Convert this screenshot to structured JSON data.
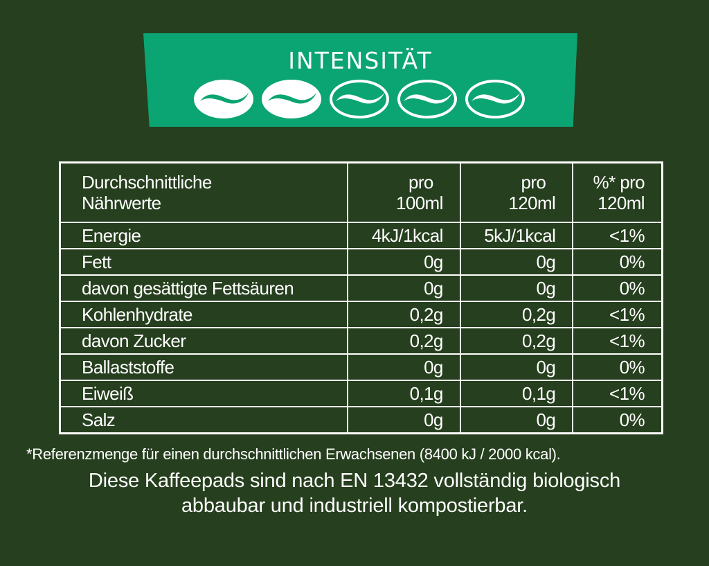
{
  "intensity": {
    "title": "INTENSITÄT",
    "level": 2,
    "max": 5,
    "icon": "coffee-bean-icon",
    "color": "#0aa572"
  },
  "table": {
    "header": {
      "label_line1": "Durchschnittliche",
      "label_line2": "Nährwerte",
      "col1_line1": "pro",
      "col1_line2": "100ml",
      "col2_line1": "pro",
      "col2_line2": "120ml",
      "col3_line1": "%* pro",
      "col3_line2": "120ml"
    },
    "rows": [
      {
        "label": "Energie",
        "per100": "4kJ/1kcal",
        "per120": "5kJ/1kcal",
        "pct": "<1%"
      },
      {
        "label": "Fett",
        "per100": "0g",
        "per120": "0g",
        "pct": "0%"
      },
      {
        "label": "davon gesättigte Fettsäuren",
        "per100": "0g",
        "per120": "0g",
        "pct": "0%"
      },
      {
        "label": "Kohlenhydrate",
        "per100": "0,2g",
        "per120": "0,2g",
        "pct": "<1%"
      },
      {
        "label": "davon Zucker",
        "per100": "0,2g",
        "per120": "0,2g",
        "pct": "<1%"
      },
      {
        "label": "Ballaststoffe",
        "per100": "0g",
        "per120": "0g",
        "pct": "0%"
      },
      {
        "label": "Eiweiß",
        "per100": "0,1g",
        "per120": "0,1g",
        "pct": "<1%"
      },
      {
        "label": "Salz",
        "per100": "0g",
        "per120": "0g",
        "pct": "0%"
      }
    ]
  },
  "footnote": "*Referenzmenge für einen durchschnittlichen Erwachsenen (8400 kJ / 2000 kcal).",
  "statement_line1": "Diese Kaffeepads sind nach EN 13432 vollständig biologisch",
  "statement_line2": "abbaubar und industriell kompostierbar."
}
